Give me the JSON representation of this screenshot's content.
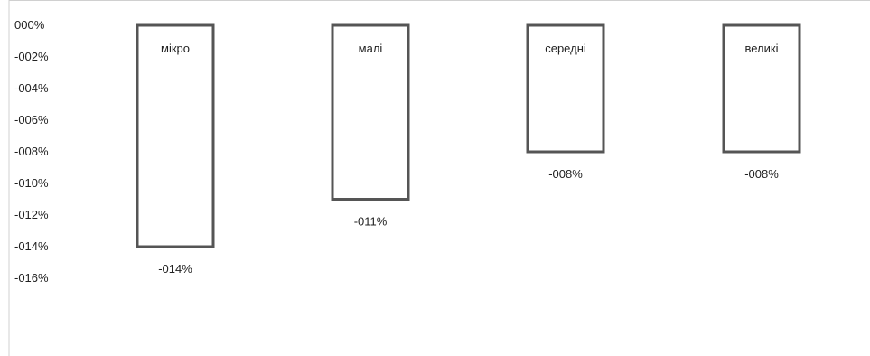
{
  "chart_data": {
    "type": "bar",
    "categories": [
      "мікро",
      "малі",
      "середні",
      "великі"
    ],
    "values": [
      -14,
      -11,
      -8,
      -8
    ],
    "data_labels": [
      "-014%",
      "-011%",
      "-008%",
      "-008%"
    ],
    "y_tick_labels": [
      "000%",
      "-002%",
      "-004%",
      "-006%",
      "-008%",
      "-010%",
      "-012%",
      "-014%",
      "-016%"
    ],
    "y_ticks": [
      0,
      -2,
      -4,
      -6,
      -8,
      -10,
      -12,
      -14,
      -16
    ],
    "ylim": [
      -16,
      0
    ],
    "unit": "%",
    "grid": false,
    "legend": "none",
    "title": "",
    "xlabel": "",
    "ylabel": "",
    "colors": {
      "bar_fill": "#ffffff",
      "bar_stroke": "#555555",
      "text": "#222222",
      "axis_line": "#d0d0d0"
    }
  }
}
